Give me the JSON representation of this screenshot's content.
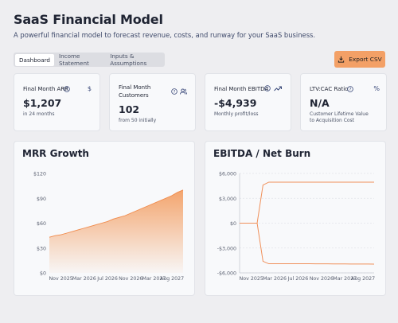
{
  "header": {
    "title": "SaaS Financial Model",
    "subtitle": "A powerful financial model to forecast revenue, costs, and runway for your SaaS business."
  },
  "tabs": [
    "Dashboard",
    "Income Statement",
    "Inputs & Assumptions"
  ],
  "export_button": "Export CSV",
  "cards": [
    {
      "label": "Final Month ARR",
      "icon": "$",
      "value": "$1,207",
      "note": "in 24 months"
    },
    {
      "label": "Final Month Customers",
      "value": "102",
      "note": "from 50 initially"
    },
    {
      "label": "Final Month EBITDA",
      "value": "-$4,939",
      "note": "Monthly profit/loss"
    },
    {
      "label": "LTV:CAC Ratio",
      "icon": "%",
      "value": "N/A",
      "note": "Customer Lifetime Value to Acquisition Cost"
    }
  ],
  "chart_data": [
    {
      "type": "area",
      "title": "MRR Growth",
      "categories": [
        null,
        null,
        "Nov 2025",
        null,
        null,
        null,
        "Mar 2026",
        null,
        null,
        null,
        "Jul 2026",
        null,
        null,
        null,
        "Nov 2026",
        null,
        null,
        null,
        "Mar 2027",
        null,
        null,
        null,
        null,
        "Aug 2027"
      ],
      "values": [
        43,
        45,
        46,
        48,
        50,
        52,
        54,
        56,
        58,
        60,
        62,
        65,
        67,
        69,
        72,
        75,
        78,
        81,
        84,
        87,
        90,
        93,
        97,
        100
      ],
      "color": "#f08a4b",
      "ylim": [
        0,
        120
      ],
      "yticks": [
        {
          "value": 0,
          "label": "$0"
        },
        {
          "value": 30,
          "label": "$30"
        },
        {
          "value": 60,
          "label": "$60"
        },
        {
          "value": 90,
          "label": "$90"
        },
        {
          "value": 120,
          "label": "$120"
        }
      ],
      "grid": false
    },
    {
      "type": "line",
      "title": "EBITDA / Net Burn",
      "categories": [
        null,
        null,
        "Nov 2025",
        null,
        null,
        null,
        "Mar 2026",
        null,
        null,
        null,
        "Jul 2026",
        null,
        null,
        null,
        "Nov 2026",
        null,
        null,
        null,
        "Mar 2027",
        null,
        null,
        null,
        null,
        "Aug 2027"
      ],
      "series": [
        {
          "color": "#f0905a",
          "values": [
            0,
            0,
            0,
            0,
            4600,
            4950,
            4950,
            4950,
            4950,
            4950,
            4950,
            4950,
            4950,
            4950,
            4950,
            4950,
            4950,
            4950,
            4950,
            4950,
            4950,
            4950,
            4950,
            4950
          ]
        },
        {
          "color": "#f0905a",
          "values": [
            0,
            0,
            0,
            0,
            -4600,
            -4900,
            -4900,
            -4900,
            -4900,
            -4900,
            -4900,
            -4900,
            -4900,
            -4910,
            -4910,
            -4910,
            -4920,
            -4920,
            -4920,
            -4930,
            -4930,
            -4930,
            -4935,
            -4939
          ]
        }
      ],
      "ylim": [
        -6000,
        6000
      ],
      "yticks": [
        {
          "value": -6000,
          "label": "-$6,000"
        },
        {
          "value": -3000,
          "label": "-$3,000"
        },
        {
          "value": 0,
          "label": "$0"
        },
        {
          "value": 3000,
          "label": "$3,000"
        },
        {
          "value": 6000,
          "label": "$6,000"
        }
      ],
      "grid": true
    }
  ]
}
